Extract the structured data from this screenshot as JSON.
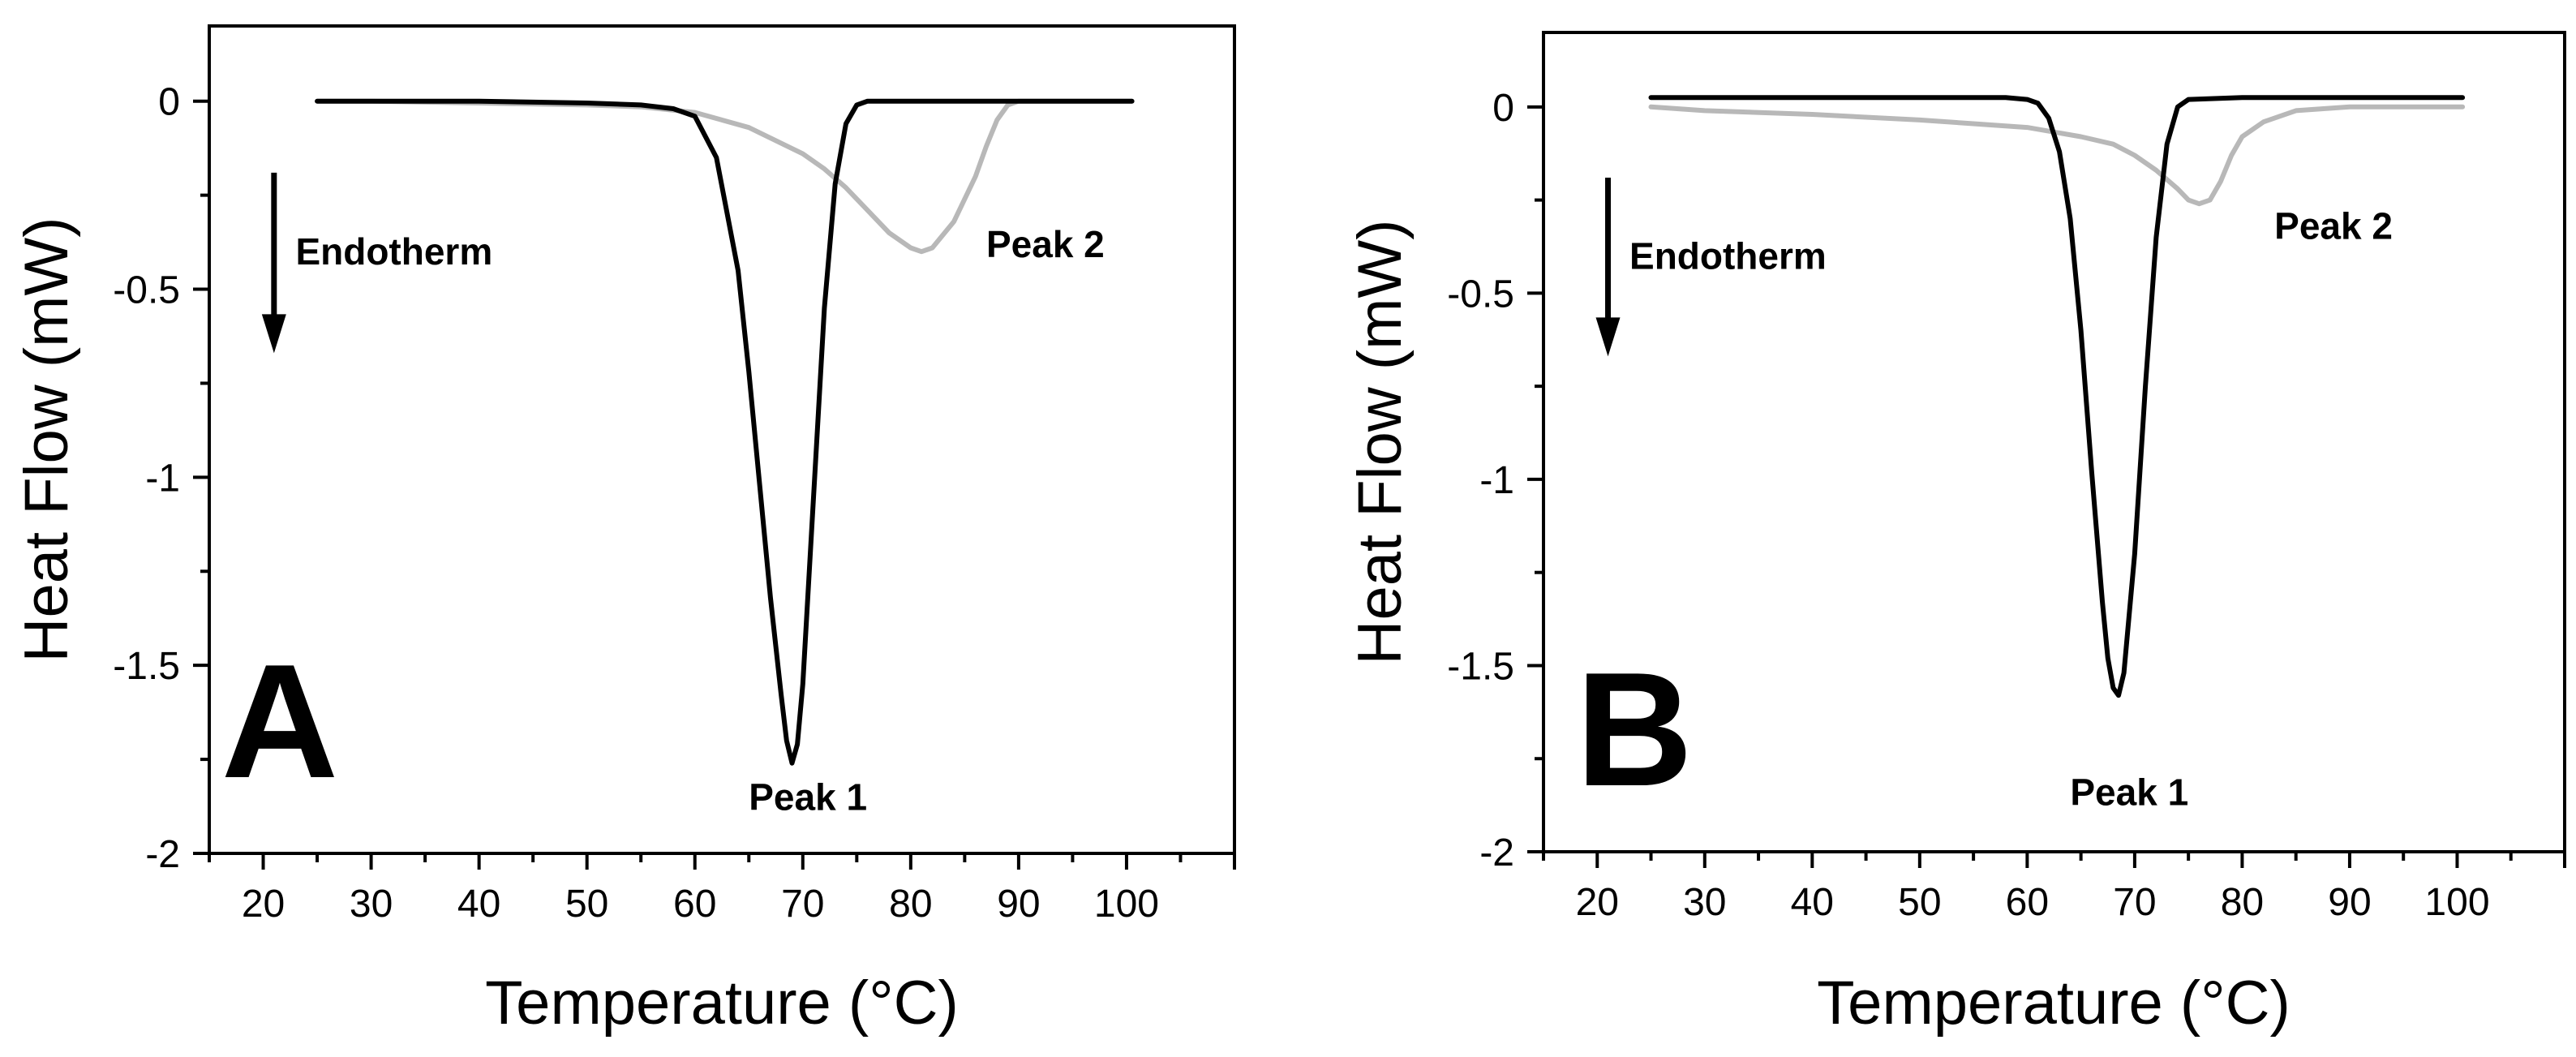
{
  "chart_data": [
    {
      "type": "line",
      "panel_label": "A",
      "xlabel": "Temperature (°C)",
      "ylabel": "Heat Flow (mW)",
      "xlim": [
        15,
        110
      ],
      "ylim": [
        -2,
        0.2
      ],
      "xticks": [
        20,
        30,
        40,
        50,
        60,
        70,
        80,
        90,
        100
      ],
      "xtick_labels": [
        "20",
        "30",
        "40",
        "50",
        "60",
        "70",
        "80",
        "90",
        "100"
      ],
      "yticks": [
        0,
        -0.5,
        -1,
        -1.5,
        -2
      ],
      "ytick_labels": [
        "0",
        "-0.5",
        "-1",
        "-1.5",
        "-2"
      ],
      "annotations": [
        {
          "text": "Endotherm",
          "x": 23,
          "y": -0.4
        },
        {
          "text": "Peak 2",
          "x": 87,
          "y": -0.38
        },
        {
          "text": "Peak 1",
          "x": 65,
          "y": -1.85
        }
      ],
      "arrow": {
        "x": 21,
        "y_from": -0.19,
        "y_to": -0.67,
        "direction": "down"
      },
      "series": [
        {
          "name": "black",
          "color": "#000000",
          "x": [
            25,
            30,
            40,
            50,
            55,
            58,
            60,
            62,
            64,
            65,
            66,
            67,
            68,
            68.5,
            69,
            69.5,
            70,
            71,
            72,
            73,
            74,
            75,
            76,
            80,
            90,
            100.5
          ],
          "y": [
            0,
            0,
            0,
            -0.005,
            -0.01,
            -0.02,
            -0.04,
            -0.15,
            -0.45,
            -0.72,
            -1.02,
            -1.32,
            -1.58,
            -1.7,
            -1.76,
            -1.71,
            -1.55,
            -1.05,
            -0.55,
            -0.22,
            -0.06,
            -0.01,
            0,
            0,
            0,
            0
          ]
        },
        {
          "name": "gray",
          "color": "#b8b8b8",
          "x": [
            25,
            30,
            40,
            50,
            55,
            60,
            65,
            70,
            72,
            74,
            76,
            78,
            80,
            81,
            82,
            84,
            86,
            87,
            88,
            89,
            90,
            95,
            100.5
          ],
          "y": [
            0,
            0,
            -0.005,
            -0.01,
            -0.015,
            -0.03,
            -0.07,
            -0.14,
            -0.18,
            -0.23,
            -0.29,
            -0.35,
            -0.39,
            -0.4,
            -0.39,
            -0.32,
            -0.2,
            -0.12,
            -0.05,
            -0.01,
            0,
            0,
            0
          ]
        }
      ]
    },
    {
      "type": "line",
      "panel_label": "B",
      "xlabel": "Temperature (°C)",
      "ylabel": "Heat Flow (mW)",
      "xlim": [
        15,
        110
      ],
      "ylim": [
        -2,
        0.2
      ],
      "xticks": [
        20,
        30,
        40,
        50,
        60,
        70,
        80,
        90,
        100
      ],
      "xtick_labels": [
        "20",
        "30",
        "40",
        "50",
        "60",
        "70",
        "80",
        "90",
        "100"
      ],
      "yticks": [
        0,
        -0.5,
        -1,
        -1.5,
        -2
      ],
      "ytick_labels": [
        "0",
        "-0.5",
        "-1",
        "-1.5",
        "-2"
      ],
      "annotations": [
        {
          "text": "Endotherm",
          "x": 23,
          "y": -0.4
        },
        {
          "text": "Peak 2",
          "x": 83,
          "y": -0.32
        },
        {
          "text": "Peak 1",
          "x": 64,
          "y": -1.84
        }
      ],
      "arrow": {
        "x": 21,
        "y_from": -0.19,
        "y_to": -0.67,
        "direction": "down"
      },
      "series": [
        {
          "name": "black",
          "color": "#000000",
          "x": [
            25,
            30,
            40,
            50,
            55,
            58,
            60,
            61,
            62,
            63,
            64,
            65,
            66,
            67,
            67.5,
            68,
            68.5,
            69,
            70,
            71,
            72,
            73,
            74,
            75,
            80,
            90,
            100.5
          ],
          "y": [
            0.025,
            0.025,
            0.025,
            0.025,
            0.025,
            0.025,
            0.02,
            0.01,
            -0.03,
            -0.12,
            -0.3,
            -0.6,
            -0.98,
            -1.33,
            -1.48,
            -1.56,
            -1.58,
            -1.52,
            -1.2,
            -0.75,
            -0.35,
            -0.1,
            0,
            0.02,
            0.025,
            0.025,
            0.025
          ]
        },
        {
          "name": "gray",
          "color": "#b8b8b8",
          "x": [
            25,
            30,
            40,
            50,
            55,
            60,
            65,
            68,
            70,
            72,
            74,
            75,
            76,
            77,
            78,
            79,
            80,
            82,
            85,
            90,
            95,
            100.5
          ],
          "y": [
            0,
            -0.01,
            -0.02,
            -0.035,
            -0.045,
            -0.055,
            -0.08,
            -0.1,
            -0.13,
            -0.17,
            -0.22,
            -0.25,
            -0.26,
            -0.25,
            -0.2,
            -0.13,
            -0.08,
            -0.04,
            -0.01,
            0,
            0,
            0
          ]
        }
      ]
    }
  ]
}
